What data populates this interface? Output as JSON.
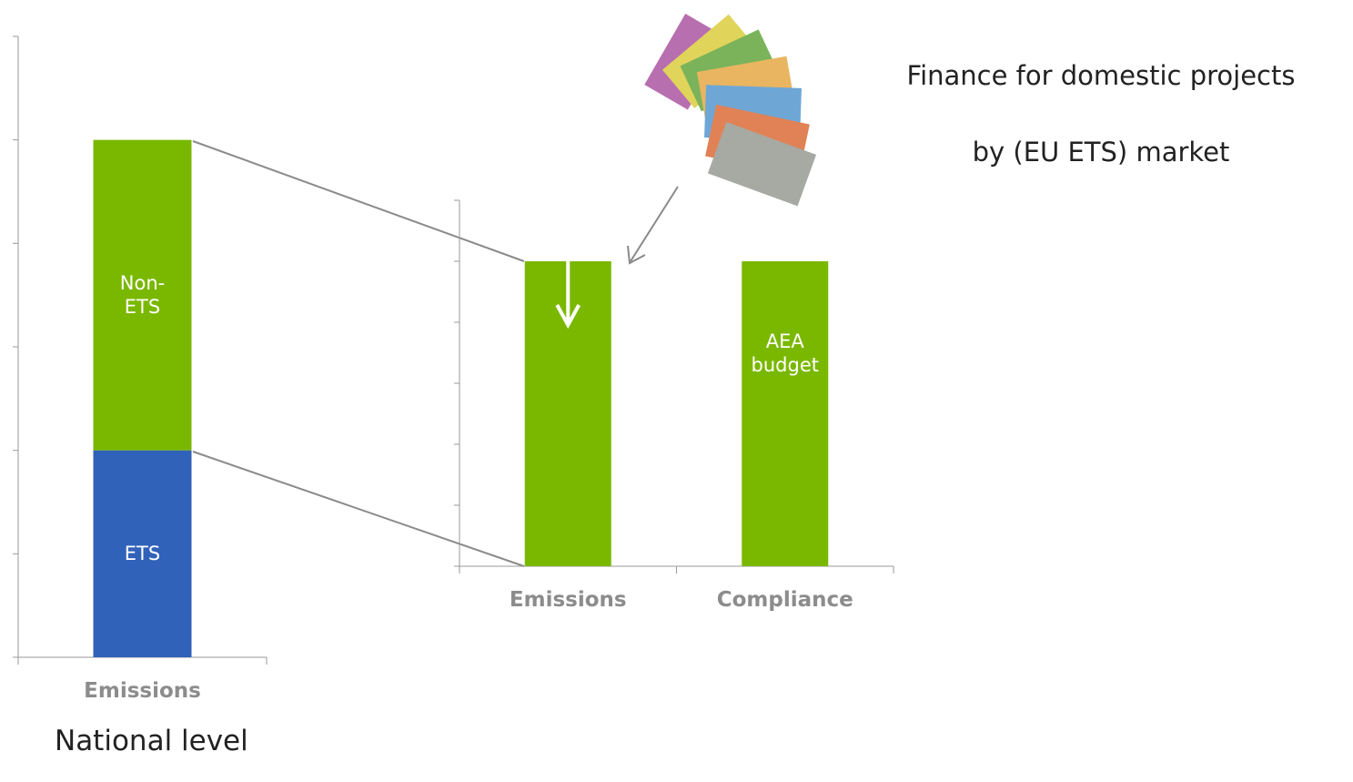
{
  "chart_data": [
    {
      "type": "stacked_bar",
      "categories": [
        "Emissions"
      ],
      "series": [
        {
          "name": "ETS",
          "color": "#3162b9",
          "values": [
            2
          ]
        },
        {
          "name": "Non-ETS",
          "color": "#7ab800",
          "values": [
            3
          ]
        }
      ],
      "ylim": [
        0,
        6
      ],
      "yticks": [
        0,
        1,
        2,
        3,
        4,
        5,
        6
      ]
    },
    {
      "type": "bar",
      "categories": [
        "Emissions",
        "Compliance"
      ],
      "values": [
        5,
        5
      ],
      "color": "#7ab800",
      "ylim": [
        0,
        6
      ],
      "yticks": [
        0,
        1,
        2,
        3,
        4,
        5,
        6
      ],
      "annotation": "AEA budget"
    }
  ],
  "note_lines": [
    "Finance for domestic projects",
    "by (EU ETS) market"
  ],
  "caption": "National level"
}
